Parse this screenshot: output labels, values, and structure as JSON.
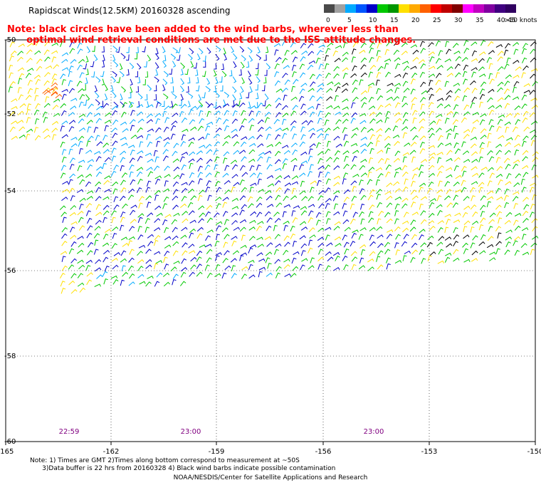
{
  "title": "Rapidscat Winds(12.5KM) 20160328 ascending",
  "note_line1": "Note: black circles have been added to the wind barbs, wherever less than",
  "note_line2": "optimal wind retrieval conditions are met due to the ISS attitude changes.",
  "legend": {
    "unit": ">50 knots",
    "bins": [
      {
        "label": "0",
        "color": "#4a4a4a"
      },
      {
        "label": "",
        "color": "#a0a0a0"
      },
      {
        "label": "5",
        "color": "#00aaff"
      },
      {
        "label": "",
        "color": "#0055ff"
      },
      {
        "label": "10",
        "color": "#0000c8"
      },
      {
        "label": "",
        "color": "#00c800"
      },
      {
        "label": "15",
        "color": "#009600"
      },
      {
        "label": "",
        "color": "#ffe000"
      },
      {
        "label": "20",
        "color": "#ffaa00"
      },
      {
        "label": "",
        "color": "#ff6000"
      },
      {
        "label": "25",
        "color": "#ff0000"
      },
      {
        "label": "",
        "color": "#c00000"
      },
      {
        "label": "30",
        "color": "#800000"
      },
      {
        "label": "",
        "color": "#ff00ff"
      },
      {
        "label": "35",
        "color": "#c000c0"
      },
      {
        "label": "",
        "color": "#8000a0"
      },
      {
        "label": "40",
        "color": "#400080"
      },
      {
        "label": "45",
        "color": "#300060"
      }
    ]
  },
  "lat_labels": [
    "-50",
    "-52",
    "-54",
    "-56",
    "-58",
    "-60"
  ],
  "lon_labels": [
    "-165",
    "-162",
    "-159",
    "-156",
    "-153",
    "-150"
  ],
  "time_labels": [
    "22:59",
    "23:00",
    "23:00"
  ],
  "footer_note_line1": "Note: 1) Times are GMT 2)Times along bottom correspond to measurement at ~50S",
  "footer_note_line2": "3)Data buffer is 22 hrs from 20160328 4) Black wind barbs indicate possible contamination",
  "credit": "NOAA/NESDIS/Center for Satellite Applications and Research",
  "map_data": {
    "lat_range": [
      -60,
      -50
    ],
    "lon_range": [
      -165,
      -150
    ],
    "speed_colors": {
      "slow": "#00aaff",
      "low": "#0000c8",
      "mid": "#00c800",
      "high": "#ffe000",
      "strong": "#ff6000",
      "flagged": "#000000"
    }
  }
}
